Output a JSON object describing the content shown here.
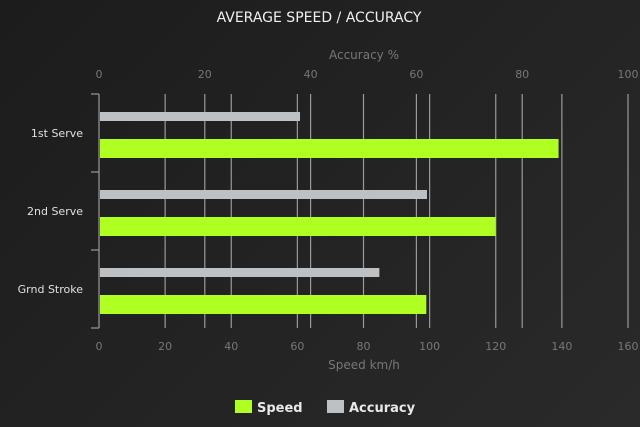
{
  "chart_data": {
    "type": "bar",
    "orientation": "horizontal",
    "title": "AVERAGE SPEED / ACCURACY",
    "categories": [
      "1st Serve",
      "2nd Serve",
      "Grnd Stroke"
    ],
    "series": [
      {
        "name": "Accuracy",
        "axis": "top",
        "color": "#bdc1c4",
        "values": [
          38,
          62,
          53
        ]
      },
      {
        "name": "Speed",
        "axis": "bottom",
        "color": "#b0ff22",
        "values": [
          139,
          120,
          99
        ]
      }
    ],
    "xlabel_bottom": "Speed km/h",
    "xlim_bottom": [
      0,
      160
    ],
    "ticks_bottom": [
      "0",
      "20",
      "40",
      "60",
      "80",
      "100",
      "120",
      "140",
      "160"
    ],
    "xlabel_top": "Accuracy %",
    "xlim_top": [
      0,
      100
    ],
    "ticks_top": [
      "0",
      "20",
      "40",
      "60",
      "80",
      "100"
    ],
    "grid": true,
    "legend": {
      "placement": "bottom",
      "entries": [
        "Speed",
        "Accuracy"
      ]
    }
  }
}
